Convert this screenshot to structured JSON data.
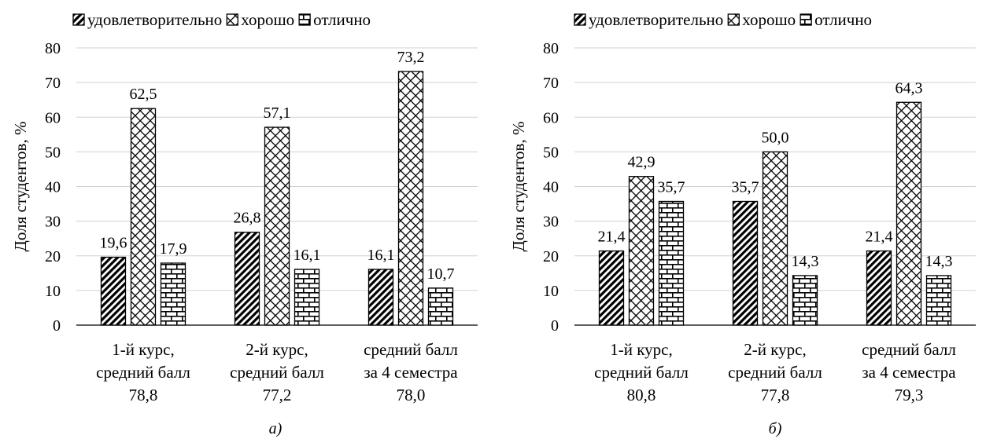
{
  "chart_data": [
    {
      "type": "bar",
      "panel_label": "а)",
      "ylabel": "Доля студентов, %",
      "ylim": [
        0,
        80
      ],
      "yticks": [
        0,
        10,
        20,
        30,
        40,
        50,
        60,
        70,
        80
      ],
      "grid": true,
      "legend": "top",
      "categories": [
        [
          "1-й курс,",
          "средний балл",
          "78,8"
        ],
        [
          "2-й курс,",
          "средний балл",
          "77,2"
        ],
        [
          "средний балл",
          "за 4 семестра",
          "78,0"
        ]
      ],
      "series": [
        {
          "name": "удовлетворительно",
          "pattern": "diagonal",
          "values": [
            19.6,
            26.8,
            16.1
          ],
          "labels": [
            "19,6",
            "26,8",
            "16,1"
          ]
        },
        {
          "name": "хорошо",
          "pattern": "crosshatch",
          "values": [
            62.5,
            57.1,
            73.2
          ],
          "labels": [
            "62,5",
            "57,1",
            "73,2"
          ]
        },
        {
          "name": "отлично",
          "pattern": "brick",
          "values": [
            17.9,
            16.1,
            10.7
          ],
          "labels": [
            "17,9",
            "16,1",
            "10,7"
          ]
        }
      ]
    },
    {
      "type": "bar",
      "panel_label": "б)",
      "ylabel": "Доля студентов, %",
      "ylim": [
        0,
        80
      ],
      "yticks": [
        0,
        10,
        20,
        30,
        40,
        50,
        60,
        70,
        80
      ],
      "grid": true,
      "legend": "top",
      "categories": [
        [
          "1-й курс,",
          "средний балл",
          "80,8"
        ],
        [
          "2-й курс,",
          "средний балл",
          "77,8"
        ],
        [
          "средний балл",
          "за 4 семестра",
          "79,3"
        ]
      ],
      "series": [
        {
          "name": "удовлетворительно",
          "pattern": "diagonal",
          "values": [
            21.4,
            35.7,
            21.4
          ],
          "labels": [
            "21,4",
            "35,7",
            "21,4"
          ]
        },
        {
          "name": "хорошо",
          "pattern": "crosshatch",
          "values": [
            42.9,
            50.0,
            64.3
          ],
          "labels": [
            "42,9",
            "50,0",
            "64,3"
          ]
        },
        {
          "name": "отлично",
          "pattern": "brick",
          "values": [
            35.7,
            14.3,
            14.3
          ],
          "labels": [
            "35,7",
            "14,3",
            "14,3"
          ]
        }
      ]
    }
  ]
}
